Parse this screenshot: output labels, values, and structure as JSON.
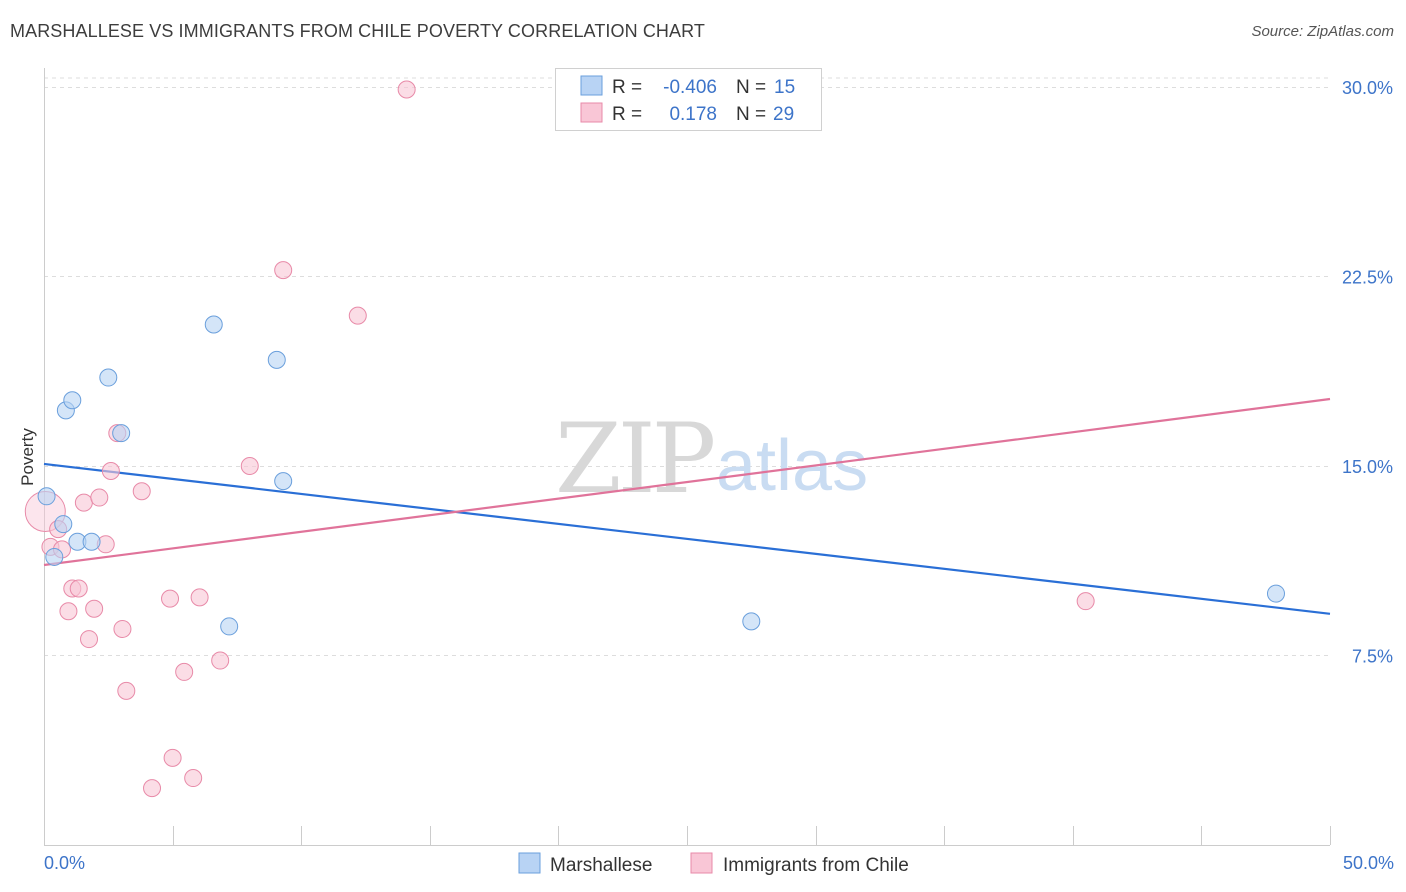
{
  "header": {
    "title": "MARSHALLESE VS IMMIGRANTS FROM CHILE POVERTY CORRELATION CHART",
    "source": "Source: ZipAtlas.com"
  },
  "watermark": {
    "zip": "ZIP",
    "atlas": "atlas"
  },
  "legend_box": {
    "rows": [
      {
        "r_label": "R =",
        "r_value": "-0.406",
        "n_label": "N =",
        "n_value": "15"
      },
      {
        "r_label": "R =",
        "r_value": "0.178",
        "n_label": "N =",
        "n_value": "29"
      }
    ]
  },
  "colors": {
    "blue_fill": "#b8d3f4",
    "blue_stroke": "#6a9fdc",
    "blue_line": "#2a6fd6",
    "pink_fill": "#f9c6d6",
    "pink_stroke": "#e88aa8",
    "pink_line": "#e0739a",
    "grid": "#dddddd",
    "axis_text": "#3d74c9"
  },
  "chart_data": {
    "type": "scatter",
    "title": "MARSHALLESE VS IMMIGRANTS FROM CHILE POVERTY CORRELATION CHART",
    "xlabel": "",
    "ylabel": "Poverty",
    "xlim": [
      0,
      50
    ],
    "ylim": [
      0,
      30.75
    ],
    "x_tick_labels": [
      "0.0%",
      "50.0%"
    ],
    "y_ticks": [
      7.5,
      15.0,
      22.5,
      30.0
    ],
    "y_tick_labels": [
      "7.5%",
      "15.0%",
      "22.5%",
      "30.0%"
    ],
    "grid": "horizontal dashed",
    "legend": "top-center",
    "series": [
      {
        "name": "Marshallese",
        "color": "#6a9fdc",
        "points": [
          {
            "x": 0.1,
            "y": 13.8
          },
          {
            "x": 0.4,
            "y": 11.4
          },
          {
            "x": 0.75,
            "y": 12.7
          },
          {
            "x": 0.85,
            "y": 17.2
          },
          {
            "x": 1.1,
            "y": 17.6
          },
          {
            "x": 1.3,
            "y": 12.0
          },
          {
            "x": 1.85,
            "y": 12.0
          },
          {
            "x": 2.5,
            "y": 18.5
          },
          {
            "x": 3.0,
            "y": 16.3
          },
          {
            "x": 6.6,
            "y": 20.6
          },
          {
            "x": 7.2,
            "y": 8.65
          },
          {
            "x": 9.05,
            "y": 19.2
          },
          {
            "x": 9.3,
            "y": 14.4
          },
          {
            "x": 27.5,
            "y": 8.85
          },
          {
            "x": 47.9,
            "y": 9.95
          }
        ],
        "trend": {
          "x": [
            0,
            50
          ],
          "y": [
            15.08,
            9.15
          ]
        }
      },
      {
        "name": "Immigrants from Chile",
        "color": "#e88aa8",
        "points": [
          {
            "x": 0.05,
            "y": 13.2
          },
          {
            "x": 0.25,
            "y": 11.8
          },
          {
            "x": 0.55,
            "y": 12.5
          },
          {
            "x": 0.7,
            "y": 11.7
          },
          {
            "x": 0.95,
            "y": 9.25
          },
          {
            "x": 1.1,
            "y": 10.15
          },
          {
            "x": 1.35,
            "y": 10.15
          },
          {
            "x": 1.55,
            "y": 13.55
          },
          {
            "x": 1.75,
            "y": 8.15
          },
          {
            "x": 1.95,
            "y": 9.35
          },
          {
            "x": 2.15,
            "y": 13.75
          },
          {
            "x": 2.4,
            "y": 11.9
          },
          {
            "x": 2.6,
            "y": 14.8
          },
          {
            "x": 2.85,
            "y": 16.3
          },
          {
            "x": 3.05,
            "y": 8.55
          },
          {
            "x": 3.2,
            "y": 6.1
          },
          {
            "x": 3.8,
            "y": 14.0
          },
          {
            "x": 4.2,
            "y": 2.25
          },
          {
            "x": 4.9,
            "y": 9.75
          },
          {
            "x": 5.0,
            "y": 3.45
          },
          {
            "x": 5.45,
            "y": 6.85
          },
          {
            "x": 5.8,
            "y": 2.65
          },
          {
            "x": 6.05,
            "y": 9.8
          },
          {
            "x": 6.85,
            "y": 7.3
          },
          {
            "x": 8.0,
            "y": 15.0
          },
          {
            "x": 9.3,
            "y": 22.75
          },
          {
            "x": 12.2,
            "y": 20.95
          },
          {
            "x": 14.1,
            "y": 29.9
          },
          {
            "x": 40.5,
            "y": 9.65
          }
        ],
        "trend": {
          "x": [
            0,
            50
          ],
          "y": [
            11.08,
            17.65
          ]
        }
      }
    ]
  },
  "bottom_legend": {
    "items": [
      {
        "label": "Marshallese"
      },
      {
        "label": "Immigrants from Chile"
      }
    ]
  }
}
